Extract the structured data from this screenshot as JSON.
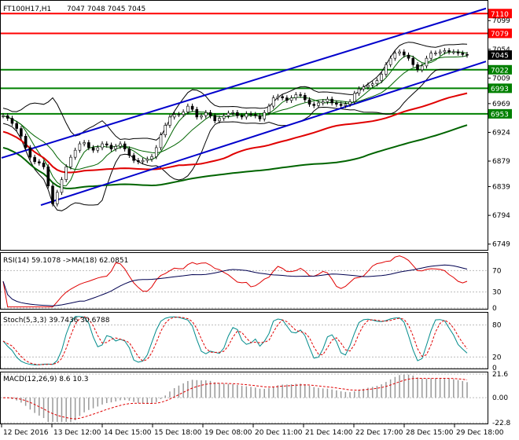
{
  "chart_data": [
    {
      "type": "candlestick",
      "panel": "price",
      "title": "FT100H17,H1",
      "ohlc_header": "7047 7048 7045 7045",
      "y_ticks": [
        "7099",
        "7054",
        "7009",
        "6969",
        "6924",
        "6879",
        "6839",
        "6794",
        "6749"
      ],
      "ylim": [
        6740,
        7130
      ],
      "horizontal_levels": [
        {
          "value": 7110,
          "label": "7110",
          "color": "#ff0000"
        },
        {
          "value": 7079,
          "label": "7079",
          "color": "#ff0000"
        },
        {
          "value": 7022,
          "label": "7022",
          "color": "#008000"
        },
        {
          "value": 6993,
          "label": "6993",
          "color": "#008000"
        },
        {
          "value": 6953,
          "label": "6953",
          "color": "#008000"
        }
      ],
      "current_price": {
        "value": 7045,
        "label": "7045",
        "color": "#000000"
      },
      "close_series": [
        6950,
        6946,
        6938,
        6930,
        6918,
        6900,
        6885,
        6878,
        6876,
        6870,
        6840,
        6812,
        6830,
        6850,
        6870,
        6885,
        6896,
        6906,
        6908,
        6900,
        6896,
        6900,
        6906,
        6904,
        6898,
        6902,
        6906,
        6898,
        6888,
        6880,
        6878,
        6880,
        6882,
        6886,
        6900,
        6920,
        6935,
        6948,
        6952,
        6952,
        6956,
        6965,
        6960,
        6948,
        6950,
        6955,
        6950,
        6942,
        6946,
        6950,
        6954,
        6955,
        6950,
        6948,
        6953,
        6952,
        6950,
        6945,
        6955,
        6965,
        6978,
        6980,
        6978,
        6974,
        6978,
        6983,
        6982,
        6975,
        6968,
        6966,
        6970,
        6972,
        6976,
        6970,
        6968,
        6966,
        6968,
        6972,
        6985,
        6992,
        6995,
        6998,
        7000,
        7005,
        7015,
        7030,
        7040,
        7048,
        7050,
        7045,
        7040,
        7030,
        7022,
        7028,
        7040,
        7048,
        7048,
        7050,
        7052,
        7050,
        7050,
        7048,
        7046,
        7045
      ]
    },
    {
      "type": "line",
      "panel": "rsi",
      "title": "RSI(14) 59.1078 ->MA(18) 62.0851",
      "y_ticks": [
        "70",
        "30",
        "0"
      ],
      "ylim": [
        0,
        100
      ]
    },
    {
      "type": "line",
      "panel": "stochastic",
      "title": "Stoch(5,3,3) 39.7436 30.6788",
      "y_ticks": [
        "80",
        "20",
        "0"
      ],
      "ylim": [
        0,
        100
      ]
    },
    {
      "type": "bar",
      "panel": "macd",
      "title": "MACD(12,26,9) 8.6 10.3",
      "y_ticks": [
        "21.6",
        "0.00",
        "-22.8"
      ],
      "ylim": [
        -22.8,
        21.6
      ]
    }
  ],
  "x_axis": {
    "labels": [
      "12 Dec 2016",
      "13 Dec 12:00",
      "14 Dec 15:00",
      "15 Dec 18:00",
      "19 Dec 08:00",
      "20 Dec 11:00",
      "21 Dec 14:00",
      "22 Dec 17:00",
      "28 Dec 15:00",
      "29 Dec 18:00"
    ]
  }
}
